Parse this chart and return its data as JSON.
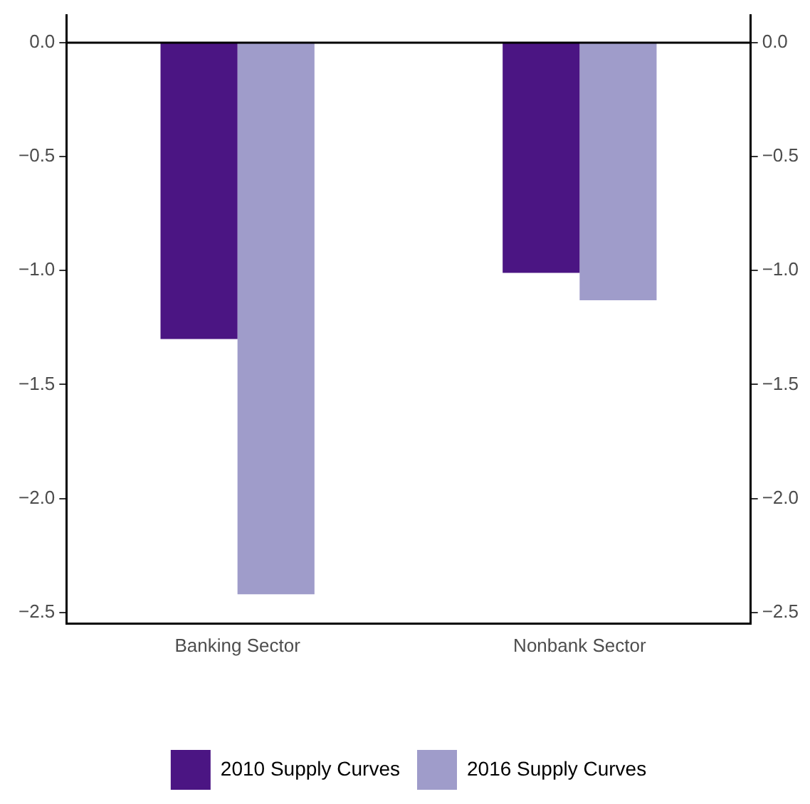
{
  "chart_data": {
    "type": "bar",
    "categories": [
      "Banking Sector",
      "Nonbank Sector"
    ],
    "series": [
      {
        "name": "2010 Supply Curves",
        "color": "#4b1583",
        "values": [
          -1.3,
          -1.01
        ]
      },
      {
        "name": "2016 Supply Curves",
        "color": "#9f9cca",
        "values": [
          -2.42,
          -1.13
        ]
      }
    ],
    "ylim": [
      -2.55,
      0.12
    ],
    "yticks": [
      {
        "value": 0,
        "label": "0.0"
      },
      -0.5,
      {
        "value": -1,
        "label": "−1.0"
      },
      {
        "value": -1.5,
        "label": "−1.5"
      },
      {
        "value": -2,
        "label": "−2.0"
      },
      {
        "value": -2.5,
        "label": "−2.5"
      }
    ],
    "y2lim": [
      -2.55,
      0.12
    ],
    "y2ticks": [
      {
        "value": 0,
        "label": "0.0"
      },
      -0.5,
      {
        "value": -1,
        "label": "−1.0"
      },
      {
        "value": -1.5,
        "label": "−1.5"
      },
      {
        "value": -2,
        "label": "−2.0"
      },
      {
        "value": -2.5,
        "label": "−2.5"
      }
    ],
    "ref_lines": [
      {
        "axis": "y",
        "value": 0,
        "color": "#000000"
      }
    ],
    "grid": false,
    "legend": "bottom"
  }
}
